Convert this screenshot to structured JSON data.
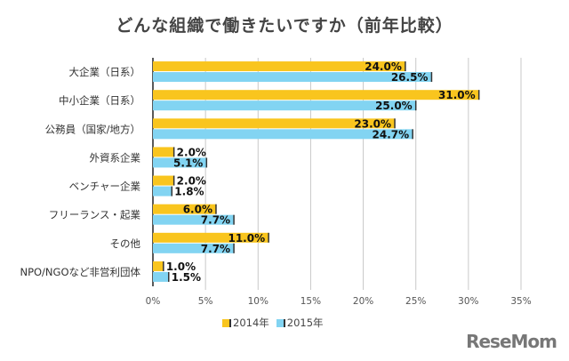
{
  "chart_data": {
    "type": "bar",
    "orientation": "horizontal",
    "title": "どんな組織で働きたいですか（前年比較）",
    "categories": [
      "大企業（日系）",
      "中小企業（日系）",
      "公務員（国家/地方）",
      "外資系企業",
      "ベンチャー企業",
      "フリーランス・起業",
      "その他",
      "NPO/NGOなど非営利団体"
    ],
    "series": [
      {
        "name": "2014年",
        "color": "#f9c51e",
        "values": [
          24.0,
          31.0,
          23.0,
          2.0,
          2.0,
          6.0,
          11.0,
          1.0
        ],
        "labels": [
          "24.0%",
          "31.0%",
          "23.0%",
          "2.0%",
          "2.0%",
          "6.0%",
          "11.0%",
          "1.0%"
        ]
      },
      {
        "name": "2015年",
        "color": "#82d4f2",
        "values": [
          26.5,
          25.0,
          24.7,
          5.1,
          1.8,
          7.7,
          7.7,
          1.5
        ],
        "labels": [
          "26.5%",
          "25.0%",
          "24.7%",
          "5.1%",
          "1.8%",
          "7.7%",
          "7.7%",
          "1.5%"
        ]
      }
    ],
    "xlim": [
      0,
      35
    ],
    "xticks": [
      "0%",
      "5%",
      "10%",
      "15%",
      "20%",
      "25%",
      "30%",
      "35%"
    ],
    "grid": true,
    "legend": "bottom"
  },
  "watermark": "ReseMom"
}
